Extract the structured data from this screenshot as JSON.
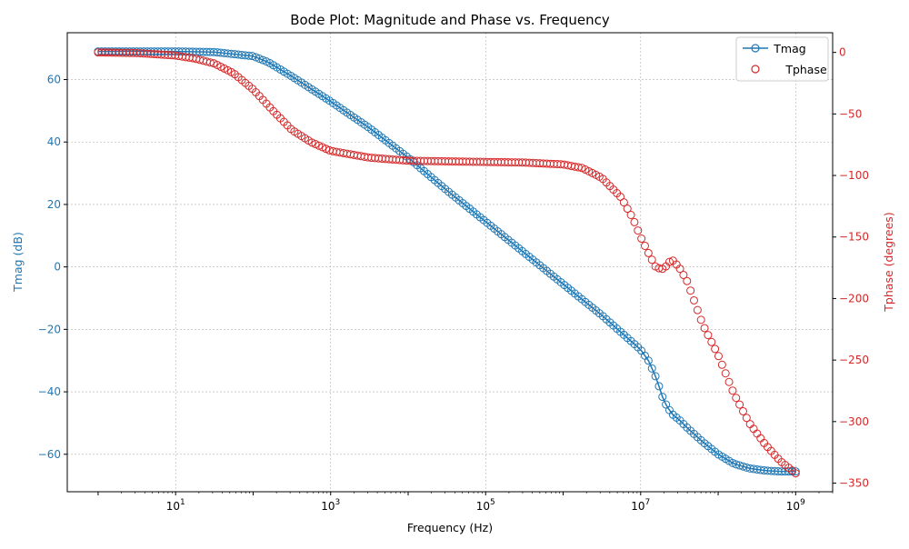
{
  "chart_data": {
    "type": "line",
    "title": "Bode Plot: Magnitude and Phase vs. Frequency",
    "xlabel": "Frequency (Hz)",
    "ylabel_left": "Tmag (dB)",
    "ylabel_right": "Tphase (degrees)",
    "xscale": "log",
    "xlim": [
      0.4,
      3000000000
    ],
    "ylim_left": [
      -72,
      75
    ],
    "ylim_right": [
      -357,
      16
    ],
    "grid": true,
    "legend_position": "top-right",
    "colors": {
      "mag": "#1f77b4",
      "phase": "#d62728"
    },
    "x_ticks": [
      {
        "value": 10,
        "base": "10",
        "exp": "1"
      },
      {
        "value": 1000,
        "base": "10",
        "exp": "3"
      },
      {
        "value": 100000,
        "base": "10",
        "exp": "5"
      },
      {
        "value": 10000000,
        "base": "10",
        "exp": "7"
      },
      {
        "value": 1000000000,
        "base": "10",
        "exp": "9"
      }
    ],
    "y_ticks_left": [
      {
        "value": 60,
        "label": "60"
      },
      {
        "value": 40,
        "label": "40"
      },
      {
        "value": 20,
        "label": "20"
      },
      {
        "value": 0,
        "label": "0"
      },
      {
        "value": -20,
        "label": "−20"
      },
      {
        "value": -40,
        "label": "−40"
      },
      {
        "value": -60,
        "label": "−60"
      }
    ],
    "y_ticks_right": [
      {
        "value": 0,
        "label": "0"
      },
      {
        "value": -50,
        "label": "−50"
      },
      {
        "value": -100,
        "label": "−100"
      },
      {
        "value": -150,
        "label": "−150"
      },
      {
        "value": -200,
        "label": "−200"
      },
      {
        "value": -250,
        "label": "−250"
      },
      {
        "value": -300,
        "label": "−300"
      },
      {
        "value": -350,
        "label": "−350"
      }
    ],
    "series": [
      {
        "name": "Tmag",
        "axis": "left",
        "style": "line-with-open-circles",
        "log10_x": [
          0,
          0.5,
          1,
          1.5,
          2,
          2.2,
          2.5,
          2.75,
          3,
          3.5,
          4,
          4.5,
          5,
          5.5,
          6,
          6.5,
          7,
          7.1,
          7.2,
          7.3,
          7.4,
          7.5,
          7.6,
          7.8,
          8,
          8.2,
          8.4,
          8.6,
          8.8,
          9
        ],
        "values": [
          69,
          69,
          69,
          68.8,
          67.5,
          65.5,
          61,
          57,
          53,
          44.5,
          35,
          24.5,
          14.5,
          4.5,
          -5.5,
          -15.5,
          -26.5,
          -30,
          -35.5,
          -43,
          -47,
          -49,
          -51.5,
          -56,
          -60,
          -63,
          -64.5,
          -65.2,
          -65.5,
          -65.5
        ]
      },
      {
        "name": "Tphase",
        "axis": "right",
        "style": "open-circles",
        "log10_x": [
          0,
          0.5,
          1,
          1.25,
          1.5,
          1.75,
          2,
          2.25,
          2.5,
          2.75,
          3,
          3.5,
          4,
          5,
          5.5,
          6,
          6.25,
          6.5,
          6.75,
          6.9,
          7,
          7.1,
          7.2,
          7.3,
          7.4,
          7.5,
          7.6,
          7.8,
          8,
          8.2,
          8.4,
          8.6,
          8.8,
          9
        ],
        "values": [
          0,
          -0.5,
          -2.5,
          -5,
          -9,
          -17,
          -30,
          -47,
          -63,
          -73,
          -80,
          -85.5,
          -88,
          -89,
          -89.5,
          -91,
          -94,
          -102,
          -118,
          -135,
          -150,
          -163,
          -175,
          -176,
          -168,
          -175,
          -186,
          -221,
          -246,
          -277,
          -301,
          -318,
          -332,
          -342
        ]
      }
    ]
  }
}
